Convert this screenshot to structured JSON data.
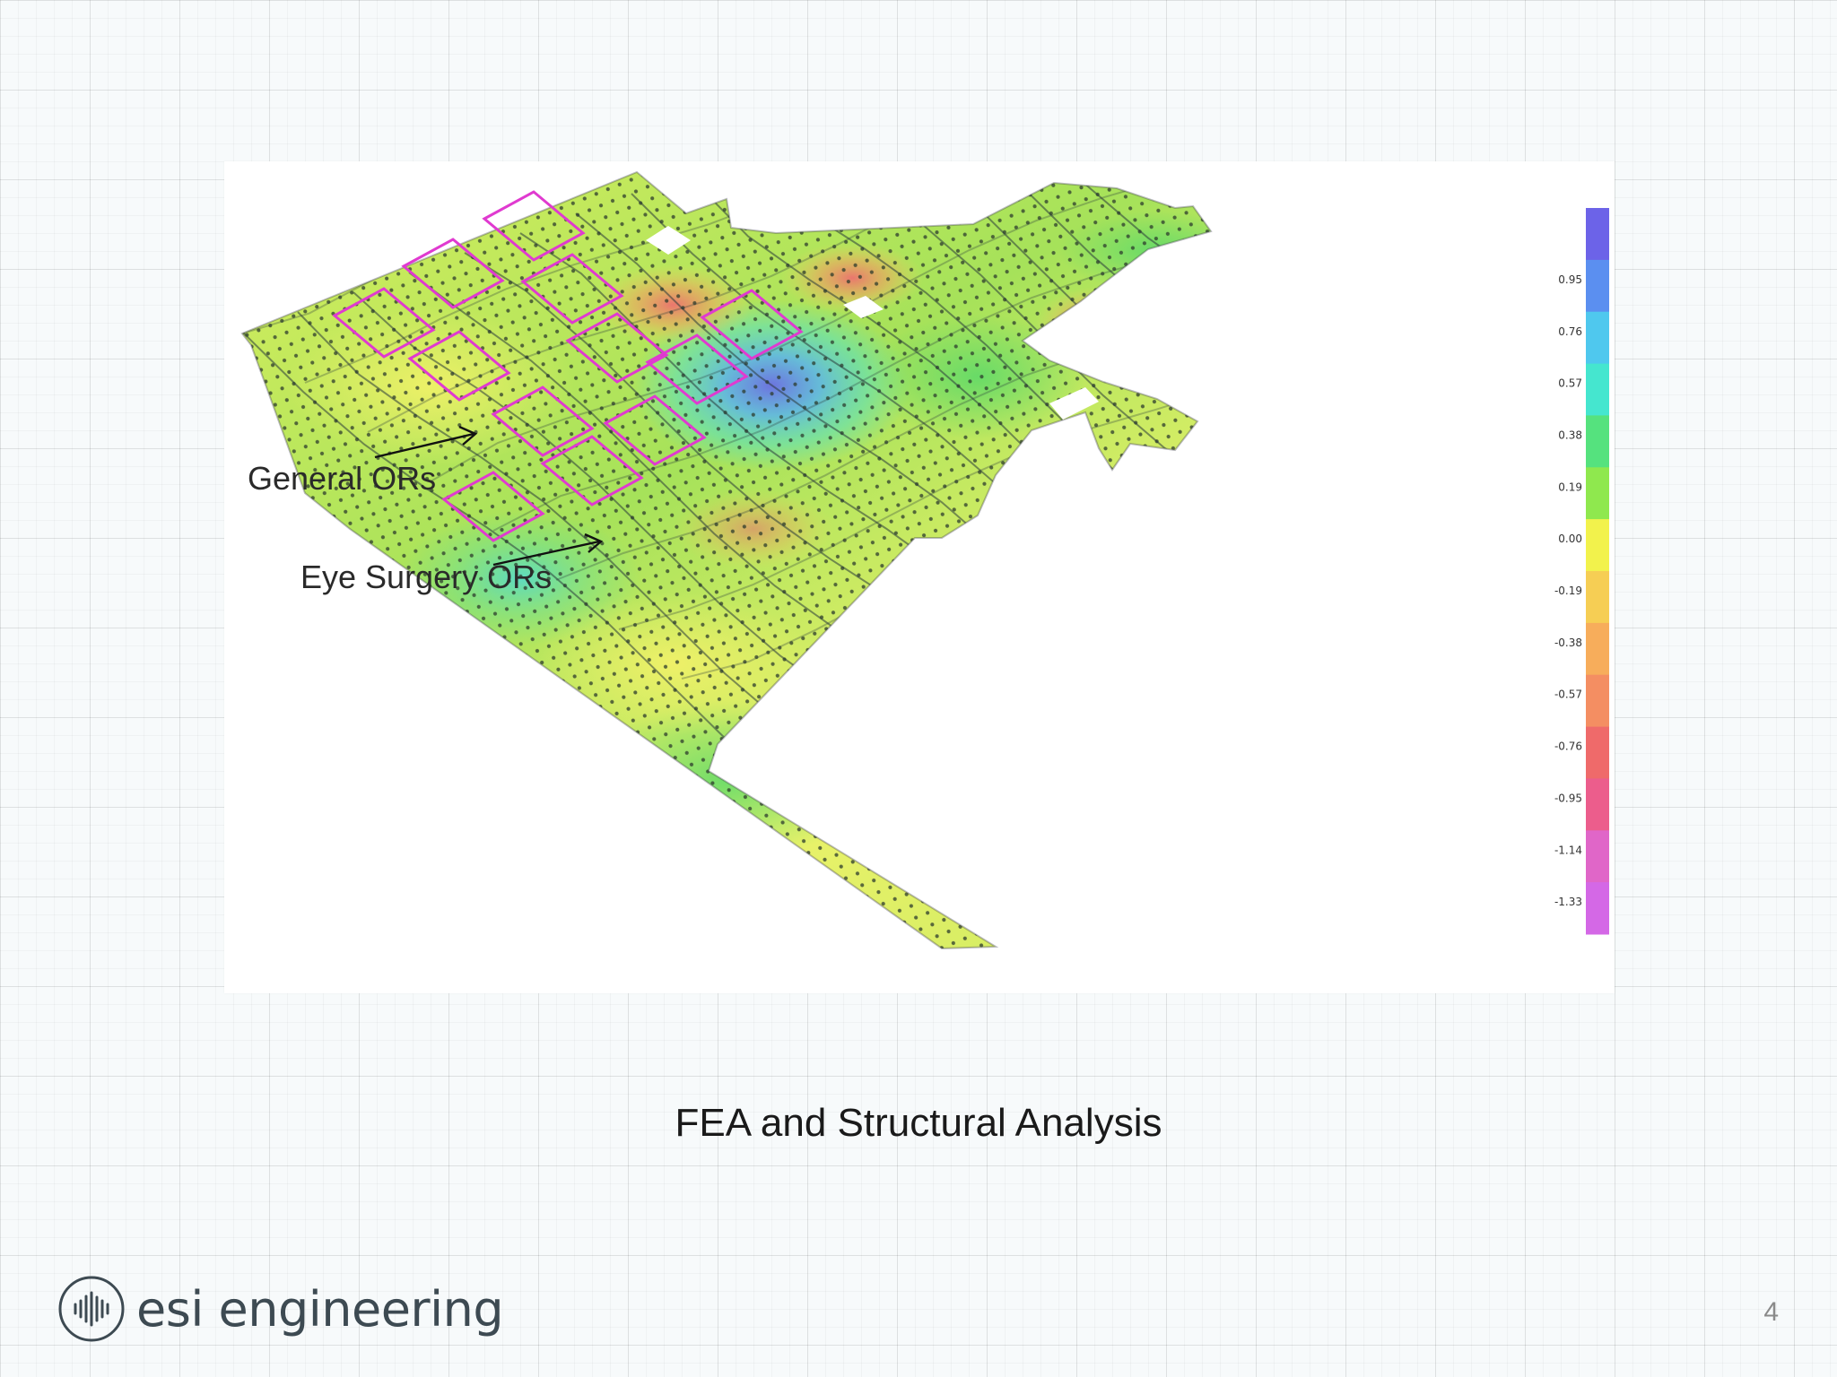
{
  "slide": {
    "caption": "FEA and Structural Analysis",
    "page_number": "4"
  },
  "logo": {
    "text": "esi engineering",
    "icon": "esi-waveform-logo-icon"
  },
  "figure": {
    "annotations": [
      {
        "id": "general",
        "label": "General ORs"
      },
      {
        "id": "eye",
        "label": "Eye Surgery ORs"
      }
    ],
    "colorbar": {
      "ticks": [
        "0.95",
        "0.76",
        "0.57",
        "0.38",
        "0.19",
        "0.00",
        "-0.19",
        "-0.38",
        "-0.57",
        "-0.76",
        "-0.95",
        "-1.14",
        "-1.33"
      ],
      "colors": [
        "#6c63e8",
        "#5b8ff0",
        "#4fc8ee",
        "#45e6cf",
        "#55e27e",
        "#8fe84e",
        "#f2f24c",
        "#f6ce54",
        "#f7ad5b",
        "#f48e62",
        "#ef6a6a",
        "#ec5d8c",
        "#e066c8",
        "#d468e6"
      ]
    },
    "colors": {
      "mesh_green": "#8ed85a",
      "mesh_yellow": "#eef46a",
      "highlight": "#e03ad0"
    }
  }
}
